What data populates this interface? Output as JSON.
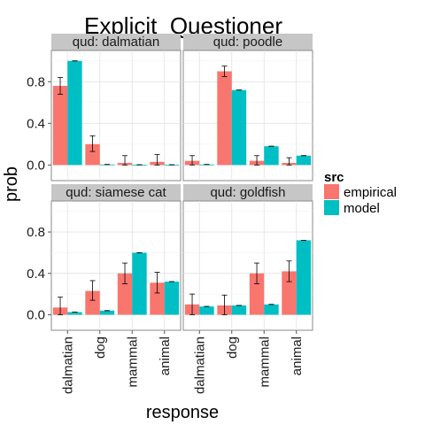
{
  "chart_data": {
    "type": "bar",
    "title": "Explicit_Questioner",
    "xlabel": "response",
    "ylabel": "prob",
    "categories": [
      "dalmatian",
      "dog",
      "mammal",
      "animal"
    ],
    "ylim": [
      -0.15,
      1.1
    ],
    "yticks": [
      0.0,
      0.4,
      0.8
    ],
    "ytick_labels": [
      "0.0",
      "0.4",
      "0.8"
    ],
    "grid": true,
    "legend": {
      "title": "src",
      "placement": "right",
      "entries": [
        "empirical",
        "model"
      ]
    },
    "series_colors": {
      "empirical": "#F8766D",
      "model": "#00BFC4"
    },
    "panels": [
      {
        "label": "qud: dalmatian",
        "series": [
          {
            "name": "empirical",
            "values": [
              0.76,
              0.2,
              0.02,
              0.03
            ],
            "error_low": [
              0.68,
              0.13,
              0.0,
              0.0
            ],
            "error_high": [
              0.84,
              0.28,
              0.09,
              0.1
            ]
          },
          {
            "name": "model",
            "values": [
              1.0,
              0.005,
              0.002,
              0.002
            ],
            "error_low": [
              1.0,
              0.005,
              0.002,
              0.002
            ],
            "error_high": [
              1.0,
              0.005,
              0.002,
              0.002
            ]
          }
        ]
      },
      {
        "label": "qud: poodle",
        "series": [
          {
            "name": "empirical",
            "values": [
              0.04,
              0.9,
              0.04,
              0.02
            ],
            "error_low": [
              0.0,
              0.85,
              0.0,
              0.0
            ],
            "error_high": [
              0.09,
              0.95,
              0.09,
              0.07
            ]
          },
          {
            "name": "model",
            "values": [
              0.005,
              0.72,
              0.18,
              0.09
            ],
            "error_low": [
              0.005,
              0.72,
              0.18,
              0.09
            ],
            "error_high": [
              0.005,
              0.72,
              0.18,
              0.09
            ]
          }
        ]
      },
      {
        "label": "qud: siamese cat",
        "series": [
          {
            "name": "empirical",
            "values": [
              0.07,
              0.23,
              0.4,
              0.31
            ],
            "error_low": [
              0.0,
              0.14,
              0.3,
              0.21
            ],
            "error_high": [
              0.17,
              0.33,
              0.5,
              0.41
            ]
          },
          {
            "name": "model",
            "values": [
              0.025,
              0.04,
              0.6,
              0.32
            ],
            "error_low": [
              0.025,
              0.04,
              0.6,
              0.32
            ],
            "error_high": [
              0.025,
              0.04,
              0.6,
              0.32
            ]
          }
        ]
      },
      {
        "label": "qud: goldfish",
        "series": [
          {
            "name": "empirical",
            "values": [
              0.1,
              0.09,
              0.4,
              0.42
            ],
            "error_low": [
              0.0,
              0.0,
              0.3,
              0.32
            ],
            "error_high": [
              0.2,
              0.19,
              0.5,
              0.52
            ]
          },
          {
            "name": "model",
            "values": [
              0.08,
              0.09,
              0.1,
              0.72
            ],
            "error_low": [
              0.08,
              0.09,
              0.1,
              0.72
            ],
            "error_high": [
              0.08,
              0.09,
              0.1,
              0.72
            ]
          }
        ]
      }
    ]
  }
}
